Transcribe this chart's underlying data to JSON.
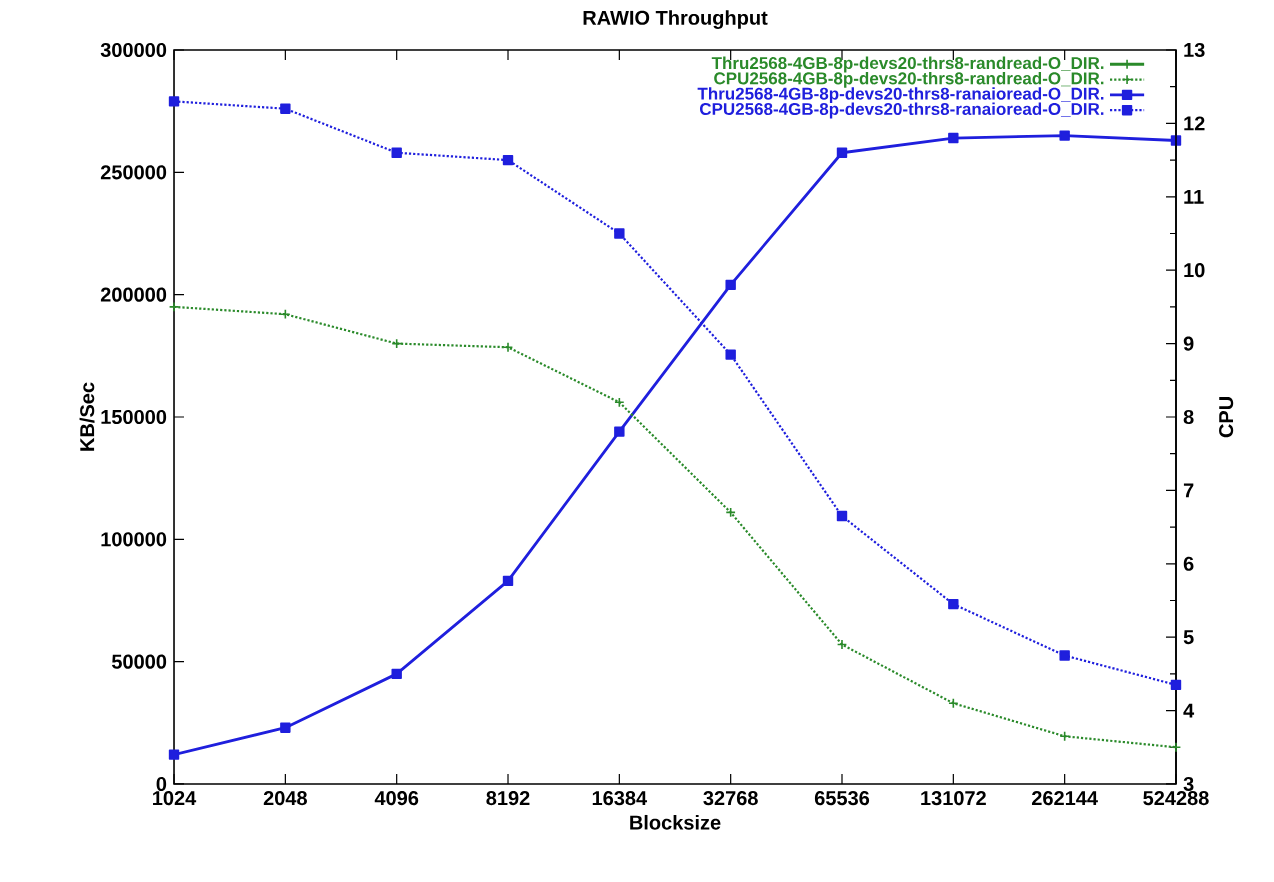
{
  "chart_data": {
    "type": "line",
    "title": "RAWIO Throughput",
    "xlabel": "Blocksize",
    "ylabel": "KB/Sec",
    "y2label": "CPU",
    "categories": [
      "1024",
      "2048",
      "4096",
      "8192",
      "16384",
      "32768",
      "65536",
      "131072",
      "262144",
      "524288"
    ],
    "ylim": [
      0,
      300000
    ],
    "yticks": [
      0,
      50000,
      100000,
      150000,
      200000,
      250000,
      300000
    ],
    "y2lim": [
      3,
      13
    ],
    "y2ticks": [
      3,
      4,
      5,
      6,
      7,
      8,
      9,
      10,
      11,
      12,
      13
    ],
    "legend": "top right",
    "series": [
      {
        "name": "Thru2568-4GB-8p-devs20-thrs8-randread-O_DIR.",
        "color": "#2a8a2a",
        "marker": "cross",
        "line_style": "solid",
        "values": [
          null,
          null,
          null,
          null,
          null,
          null,
          null,
          null,
          null,
          null
        ]
      },
      {
        "name": "CPU2568-4GB-8p-devs20-thrs8-randread-O_DIR.",
        "color": "#2a8a2a",
        "marker": "cross",
        "line_style": "dotted",
        "axis": "y2",
        "values": [
          9.5,
          9.4,
          9.0,
          8.95,
          8.2,
          6.7,
          4.9,
          4.1,
          3.65,
          3.5
        ]
      },
      {
        "name": "Thru2568-4GB-8p-devs20-thrs8-ranaioread-O_DIR.",
        "color": "#1f1fdd",
        "marker": "square",
        "line_style": "solid",
        "values": [
          12000,
          23000,
          45000,
          83000,
          144000,
          204000,
          258000,
          264000,
          265000,
          263000
        ]
      },
      {
        "name": "CPU2568-4GB-8p-devs20-thrs8-ranaioread-O_DIR.",
        "color": "#1f1fdd",
        "marker": "square",
        "line_style": "dotted",
        "axis": "y2",
        "values": [
          12.3,
          12.2,
          11.6,
          11.5,
          10.5,
          8.85,
          6.65,
          5.45,
          4.75,
          4.35
        ]
      }
    ]
  }
}
